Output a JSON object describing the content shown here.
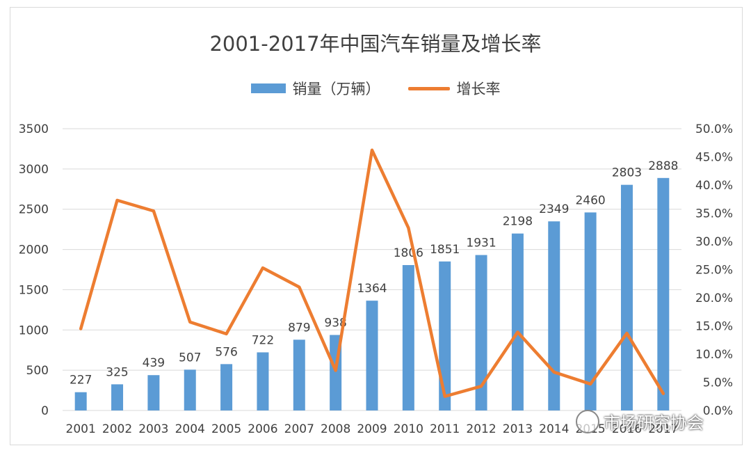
{
  "chart_data": {
    "type": "bar+line",
    "title": "2001-2017年中国汽车销量及增长率",
    "categories": [
      "2001",
      "2002",
      "2003",
      "2004",
      "2005",
      "2006",
      "2007",
      "2008",
      "2009",
      "2010",
      "2011",
      "2012",
      "2013",
      "2014",
      "2015",
      "2016",
      "2017"
    ],
    "series": [
      {
        "name": "销量（万辆）",
        "type": "bar",
        "axis": "left",
        "color": "#5b9bd5",
        "values": [
          227,
          325,
          439,
          507,
          576,
          722,
          879,
          938,
          1364,
          1806,
          1851,
          1931,
          2198,
          2349,
          2460,
          2803,
          2888
        ]
      },
      {
        "name": "增长率",
        "type": "line",
        "axis": "right",
        "color": "#ed7d31",
        "values": [
          14.5,
          37.3,
          35.4,
          15.7,
          13.6,
          25.3,
          21.9,
          7.1,
          46.2,
          32.4,
          2.5,
          4.3,
          13.9,
          6.8,
          4.7,
          13.7,
          3.0
        ]
      }
    ],
    "left_axis": {
      "min": 0,
      "max": 3500,
      "ticks": [
        "0",
        "500",
        "1000",
        "1500",
        "2000",
        "2500",
        "3000",
        "3500"
      ]
    },
    "right_axis": {
      "min": 0,
      "max": 50,
      "ticks": [
        "0.0%",
        "5.0%",
        "10.0%",
        "15.0%",
        "20.0%",
        "25.0%",
        "30.0%",
        "35.0%",
        "40.0%",
        "45.0%",
        "50.0%"
      ]
    },
    "grid": true,
    "legend": "top"
  },
  "watermark": {
    "text": "市场研究协会",
    "icon": "wechat-icon"
  }
}
